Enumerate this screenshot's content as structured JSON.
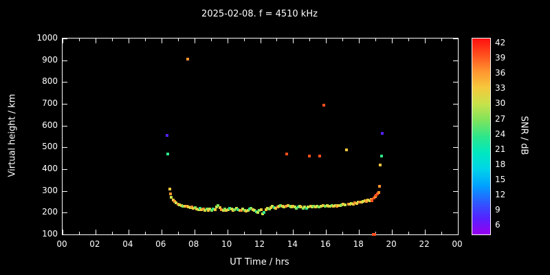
{
  "title": "2025-02-08. f = 4510 kHz",
  "chart_data": {
    "type": "scatter",
    "title": "2025-02-08. f = 4510 kHz",
    "xlabel": "UT Time / hrs",
    "ylabel": "Virtual height / km",
    "xlim": [
      0,
      24
    ],
    "ylim": [
      100,
      1000
    ],
    "x_ticks": {
      "values": [
        0,
        2,
        4,
        6,
        8,
        10,
        12,
        14,
        16,
        18,
        20,
        22,
        24
      ],
      "labels": [
        "00",
        "02",
        "04",
        "06",
        "08",
        "10",
        "12",
        "14",
        "16",
        "18",
        "20",
        "22",
        "00"
      ]
    },
    "y_ticks": {
      "values": [
        100,
        200,
        300,
        400,
        500,
        600,
        700,
        800,
        900,
        1000
      ],
      "labels": [
        "100",
        "200",
        "300",
        "400",
        "500",
        "600",
        "700",
        "800",
        "900",
        "1000"
      ]
    },
    "colorbar": {
      "label": "SNR / dB",
      "levels": [
        6,
        9,
        12,
        15,
        18,
        21,
        24,
        27,
        30,
        33,
        36,
        39,
        42
      ],
      "colors": [
        "#9900ee",
        "#5522ff",
        "#2b5cff",
        "#00a2ff",
        "#00d4e8",
        "#00e8c0",
        "#2ee68a",
        "#7fe35c",
        "#c8e24a",
        "#f5c83c",
        "#ff9430",
        "#ff4f1e",
        "#ff0f0f"
      ]
    },
    "points": [
      [
        6.35,
        555,
        9
      ],
      [
        6.4,
        470,
        24
      ],
      [
        6.5,
        310,
        33
      ],
      [
        6.55,
        285,
        36
      ],
      [
        6.6,
        270,
        30
      ],
      [
        6.7,
        258,
        33
      ],
      [
        6.8,
        252,
        36
      ],
      [
        6.9,
        246,
        30
      ],
      [
        7.0,
        240,
        36
      ],
      [
        7.1,
        236,
        30
      ],
      [
        7.2,
        232,
        33
      ],
      [
        7.3,
        230,
        27
      ],
      [
        7.45,
        228,
        33
      ],
      [
        7.55,
        230,
        36
      ],
      [
        7.6,
        905,
        36
      ],
      [
        7.65,
        226,
        33
      ],
      [
        7.75,
        222,
        30
      ],
      [
        7.85,
        226,
        36
      ],
      [
        7.95,
        220,
        33
      ],
      [
        8.05,
        222,
        27
      ],
      [
        8.15,
        218,
        33
      ],
      [
        8.25,
        214,
        30
      ],
      [
        8.35,
        220,
        24
      ],
      [
        8.45,
        214,
        33
      ],
      [
        8.55,
        218,
        36
      ],
      [
        8.65,
        212,
        30
      ],
      [
        8.75,
        216,
        27
      ],
      [
        8.85,
        210,
        33
      ],
      [
        8.95,
        216,
        30
      ],
      [
        9.05,
        212,
        27
      ],
      [
        9.15,
        218,
        24
      ],
      [
        9.25,
        214,
        33
      ],
      [
        9.35,
        226,
        30
      ],
      [
        9.45,
        232,
        27
      ],
      [
        9.55,
        224,
        33
      ],
      [
        9.65,
        214,
        36
      ],
      [
        9.75,
        212,
        30
      ],
      [
        9.85,
        216,
        27
      ],
      [
        9.95,
        210,
        33
      ],
      [
        10.05,
        214,
        30
      ],
      [
        10.15,
        220,
        24
      ],
      [
        10.25,
        216,
        30
      ],
      [
        10.35,
        210,
        33
      ],
      [
        10.45,
        214,
        27
      ],
      [
        10.55,
        220,
        30
      ],
      [
        10.65,
        214,
        24
      ],
      [
        10.75,
        210,
        33
      ],
      [
        10.85,
        212,
        36
      ],
      [
        10.95,
        216,
        30
      ],
      [
        11.05,
        210,
        27
      ],
      [
        11.15,
        206,
        33
      ],
      [
        11.25,
        210,
        30
      ],
      [
        11.35,
        216,
        24
      ],
      [
        11.45,
        220,
        27
      ],
      [
        11.55,
        214,
        33
      ],
      [
        11.65,
        210,
        30
      ],
      [
        11.75,
        204,
        24
      ],
      [
        11.85,
        200,
        30
      ],
      [
        11.95,
        210,
        27
      ],
      [
        12.05,
        214,
        33
      ],
      [
        12.15,
        196,
        30
      ],
      [
        12.25,
        200,
        24
      ],
      [
        12.35,
        214,
        33
      ],
      [
        12.45,
        220,
        30
      ],
      [
        12.55,
        216,
        27
      ],
      [
        12.65,
        224,
        33
      ],
      [
        12.75,
        230,
        30
      ],
      [
        12.85,
        224,
        24
      ],
      [
        12.95,
        220,
        33
      ],
      [
        13.05,
        226,
        36
      ],
      [
        13.15,
        230,
        30
      ],
      [
        13.25,
        234,
        27
      ],
      [
        13.35,
        230,
        33
      ],
      [
        13.45,
        226,
        30
      ],
      [
        13.55,
        230,
        36
      ],
      [
        13.6,
        470,
        39
      ],
      [
        13.7,
        234,
        33
      ],
      [
        13.8,
        230,
        27
      ],
      [
        13.9,
        226,
        30
      ],
      [
        14.0,
        230,
        33
      ],
      [
        14.1,
        226,
        30
      ],
      [
        14.2,
        220,
        27
      ],
      [
        14.3,
        226,
        24
      ],
      [
        14.4,
        230,
        30
      ],
      [
        14.5,
        226,
        33
      ],
      [
        14.6,
        220,
        27
      ],
      [
        14.7,
        226,
        30
      ],
      [
        14.8,
        220,
        24
      ],
      [
        14.9,
        226,
        30
      ],
      [
        15.0,
        460,
        39
      ],
      [
        15.05,
        230,
        33
      ],
      [
        15.15,
        226,
        30
      ],
      [
        15.25,
        230,
        27
      ],
      [
        15.35,
        226,
        33
      ],
      [
        15.45,
        230,
        30
      ],
      [
        15.55,
        226,
        27
      ],
      [
        15.6,
        460,
        39
      ],
      [
        15.7,
        230,
        30
      ],
      [
        15.8,
        234,
        33
      ],
      [
        15.85,
        695,
        39
      ],
      [
        15.95,
        230,
        27
      ],
      [
        16.05,
        234,
        30
      ],
      [
        16.15,
        230,
        33
      ],
      [
        16.25,
        228,
        30
      ],
      [
        16.35,
        232,
        27
      ],
      [
        16.45,
        230,
        33
      ],
      [
        16.55,
        234,
        30
      ],
      [
        16.65,
        230,
        36
      ],
      [
        16.75,
        234,
        33
      ],
      [
        16.85,
        232,
        30
      ],
      [
        16.95,
        236,
        27
      ],
      [
        17.05,
        238,
        33
      ],
      [
        17.15,
        236,
        30
      ],
      [
        17.25,
        490,
        33
      ],
      [
        17.35,
        240,
        36
      ],
      [
        17.45,
        238,
        33
      ],
      [
        17.55,
        242,
        30
      ],
      [
        17.65,
        240,
        33
      ],
      [
        17.75,
        246,
        36
      ],
      [
        17.85,
        242,
        33
      ],
      [
        17.95,
        248,
        30
      ],
      [
        18.05,
        250,
        36
      ],
      [
        18.15,
        248,
        33
      ],
      [
        18.25,
        252,
        30
      ],
      [
        18.35,
        256,
        33
      ],
      [
        18.45,
        252,
        36
      ],
      [
        18.55,
        258,
        33
      ],
      [
        18.65,
        256,
        30
      ],
      [
        18.75,
        262,
        36
      ],
      [
        18.8,
        256,
        39
      ],
      [
        18.85,
        100,
        39
      ],
      [
        18.9,
        268,
        39
      ],
      [
        18.95,
        100,
        39
      ],
      [
        19.0,
        274,
        36
      ],
      [
        19.05,
        280,
        39
      ],
      [
        19.1,
        286,
        39
      ],
      [
        19.2,
        292,
        36
      ],
      [
        19.25,
        322,
        36
      ],
      [
        19.3,
        420,
        33
      ],
      [
        19.35,
        460,
        24
      ],
      [
        19.4,
        565,
        9
      ]
    ]
  }
}
